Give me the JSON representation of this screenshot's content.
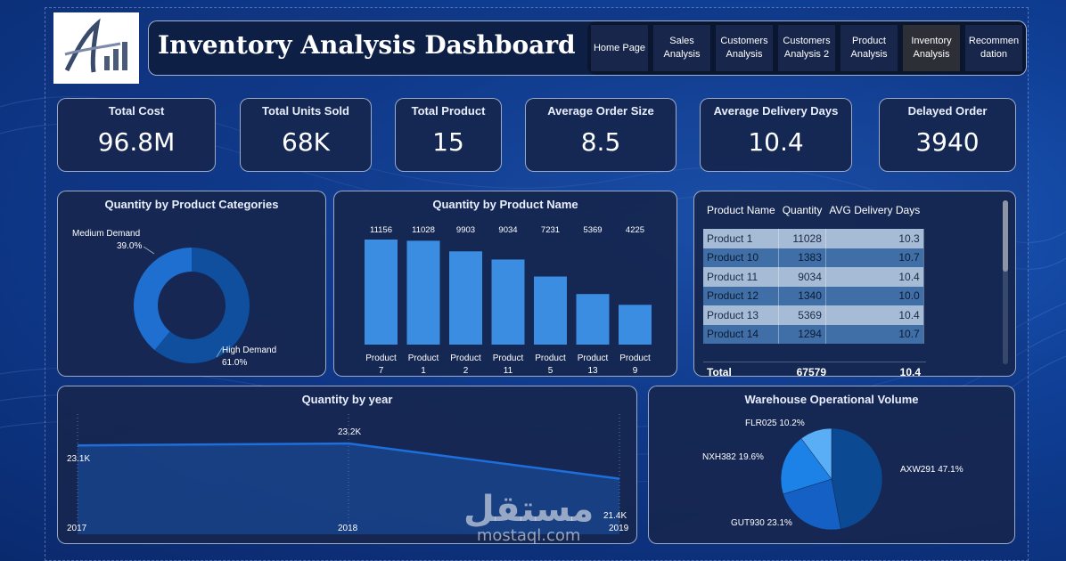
{
  "header": {
    "title": "Inventory Analysis Dashboard",
    "nav": [
      {
        "label": "Home Page",
        "active": false
      },
      {
        "label": "Sales\nAnalysis",
        "active": false
      },
      {
        "label": "Customers\nAnalysis",
        "active": false
      },
      {
        "label": "Customers\nAnalysis 2",
        "active": false
      },
      {
        "label": "Product\nAnalysis",
        "active": false
      },
      {
        "label": "Inventory\nAnalysis",
        "active": true
      },
      {
        "label": "Recommen\ndation",
        "active": false
      }
    ]
  },
  "kpis": [
    {
      "label": "Total Cost",
      "value": "96.8M"
    },
    {
      "label": "Total Units Sold",
      "value": "68K"
    },
    {
      "label": "Total Product",
      "value": "15"
    },
    {
      "label": "Average Order Size",
      "value": "8.5"
    },
    {
      "label": "Average Delivery Days",
      "value": "10.4"
    },
    {
      "label": "Delayed Order",
      "value": "3940"
    }
  ],
  "category_chart": {
    "title": "Quantity by Product Categories",
    "slices": [
      {
        "name": "Medium Demand",
        "pct_label": "39.0%",
        "value": 39.0,
        "color": "#1f6fd1"
      },
      {
        "name": "High Demand",
        "pct_label": "61.0%",
        "value": 61.0,
        "color": "#0f4f9e"
      }
    ]
  },
  "product_chart": {
    "title": "Quantity by Product Name",
    "bars": [
      {
        "value": 11156,
        "label_top": "11156",
        "label_l1": "Product",
        "label_l2": "7"
      },
      {
        "value": 11028,
        "label_top": "11028",
        "label_l1": "Product",
        "label_l2": "1"
      },
      {
        "value": 9903,
        "label_top": "9903",
        "label_l1": "Product",
        "label_l2": "2"
      },
      {
        "value": 9034,
        "label_top": "9034",
        "label_l1": "Product",
        "label_l2": "11"
      },
      {
        "value": 7231,
        "label_top": "7231",
        "label_l1": "Product",
        "label_l2": "5"
      },
      {
        "value": 5369,
        "label_top": "5369",
        "label_l1": "Product",
        "label_l2": "13"
      },
      {
        "value": 4225,
        "label_top": "4225",
        "label_l1": "Product",
        "label_l2": "9"
      }
    ],
    "bar_color": "#3a8de0"
  },
  "table": {
    "headers": [
      "Product Name",
      "Quantity",
      "AVG Delivery Days"
    ],
    "rows": [
      [
        "Product 1",
        "11028",
        "10.3"
      ],
      [
        "Product 10",
        "1383",
        "10.7"
      ],
      [
        "Product 11",
        "9034",
        "10.4"
      ],
      [
        "Product 12",
        "1340",
        "10.0"
      ],
      [
        "Product 13",
        "5369",
        "10.4"
      ],
      [
        "Product 14",
        "1294",
        "10.7"
      ]
    ],
    "total": [
      "Total",
      "67579",
      "10.4"
    ]
  },
  "year_chart": {
    "title": "Quantity by year",
    "points": [
      {
        "year": "2017",
        "value_label": "23.1K",
        "value": 23.1
      },
      {
        "year": "2018",
        "value_label": "23.2K",
        "value": 23.2
      },
      {
        "year": "2019",
        "value_label": "21.4K",
        "value": 21.4
      }
    ]
  },
  "warehouse_chart": {
    "title": "Warehouse Operational Volume",
    "slices": [
      {
        "name": "AXW291",
        "label": "AXW291 47.1%",
        "value": 47.1,
        "color": "#0b4a92"
      },
      {
        "name": "GUT930",
        "label": "GUT930 23.1%",
        "value": 23.1,
        "color": "#1560c4"
      },
      {
        "name": "NXH382",
        "label": "NXH382 19.6%",
        "value": 19.6,
        "color": "#1d82e8"
      },
      {
        "name": "FLR025",
        "label": "FLR025 10.2%",
        "value": 10.2,
        "color": "#5aaef5"
      }
    ]
  },
  "chart_data": [
    {
      "type": "pie",
      "title": "Quantity by Product Categories",
      "categories": [
        "Medium Demand",
        "High Demand"
      ],
      "values": [
        39.0,
        61.0
      ]
    },
    {
      "type": "bar",
      "title": "Quantity by Product Name",
      "categories": [
        "Product 7",
        "Product 1",
        "Product 2",
        "Product 11",
        "Product 5",
        "Product 13",
        "Product 9"
      ],
      "values": [
        11156,
        11028,
        9903,
        9034,
        7231,
        5369,
        4225
      ]
    },
    {
      "type": "area",
      "title": "Quantity by year",
      "x": [
        "2017",
        "2018",
        "2019"
      ],
      "values": [
        23100,
        23200,
        21400
      ]
    },
    {
      "type": "pie",
      "title": "Warehouse Operational Volume",
      "categories": [
        "AXW291",
        "GUT930",
        "NXH382",
        "FLR025"
      ],
      "values": [
        47.1,
        23.1,
        19.6,
        10.2
      ]
    }
  ],
  "watermark": {
    "arabic": "مستقل",
    "latin": "mostaql.com"
  }
}
